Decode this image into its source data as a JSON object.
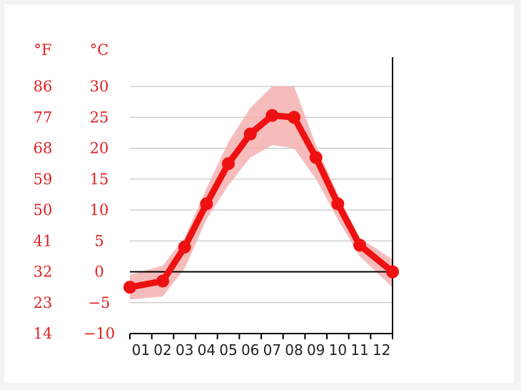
{
  "chart_data": {
    "type": "line",
    "title": "",
    "xlabel": "",
    "ylabel": "",
    "unit_f": "°F",
    "unit_c": "°C",
    "categories": [
      "01",
      "02",
      "03",
      "04",
      "05",
      "06",
      "07",
      "08",
      "09",
      "10",
      "11",
      "12"
    ],
    "c_ticks": [
      "30",
      "25",
      "20",
      "15",
      "10",
      "5",
      "0",
      "−5",
      "−10"
    ],
    "f_ticks": [
      "86",
      "77",
      "68",
      "59",
      "50",
      "41",
      "32",
      "23",
      "14"
    ],
    "ylim": [
      -10,
      30
    ],
    "grid": true,
    "series": [
      {
        "values": [
          -2.5,
          -1.5,
          4.0,
          11.0,
          17.5,
          22.3,
          25.3,
          25.0,
          18.5,
          11.0,
          4.3,
          0.0
        ]
      }
    ],
    "band_upper": [
      -0.5,
      1.0,
      5.5,
      13.5,
      21.0,
      26.5,
      30.0,
      30.0,
      20.5,
      12.5,
      5.5,
      2.0
    ],
    "band_lower": [
      -4.5,
      -4.0,
      0.5,
      8.5,
      14.0,
      18.5,
      20.5,
      20.0,
      15.0,
      8.5,
      2.5,
      -2.5
    ],
    "colors": {
      "line": "#ee1111",
      "band": "#f4b0b0",
      "tick_text": "#dd2222",
      "grid": "#bbbbbb",
      "axis": "#000000"
    }
  }
}
